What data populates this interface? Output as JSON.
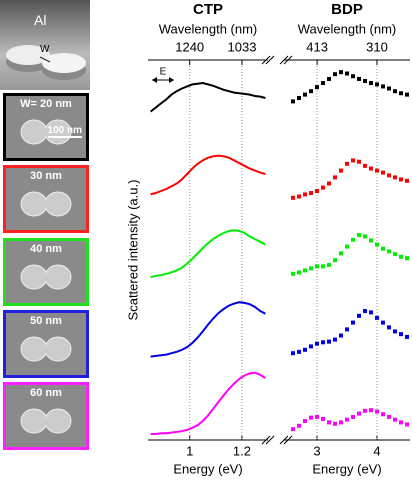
{
  "panel": {
    "render_label": "Al",
    "gap_label": "W",
    "scale_bar": "100 nm",
    "images": [
      {
        "label": "W= 20 nm",
        "color": "#000000"
      },
      {
        "label": "30 nm",
        "color": "#ff2020"
      },
      {
        "label": "40 nm",
        "color": "#20e020"
      },
      {
        "label": "50 nm",
        "color": "#2020e0"
      },
      {
        "label": "60 nm",
        "color": "#ff20ff"
      }
    ]
  },
  "chart_data": [
    {
      "type": "line",
      "title": "CTP",
      "x2label": "Wavelength (nm)",
      "xlabel": "Energy (eV)",
      "ylabel": "Scattered intensity (a.u.)",
      "annotation": "E",
      "xlim": [
        0.84,
        1.3
      ],
      "xticks": [
        1.0,
        1.2
      ],
      "x2ticks": [
        1240,
        1033
      ],
      "ylim": [
        0,
        1
      ],
      "grid": true,
      "x": [
        0.85,
        0.87,
        0.89,
        0.91,
        0.93,
        0.95,
        0.97,
        0.99,
        1.01,
        1.03,
        1.05,
        1.07,
        1.09,
        1.11,
        1.13,
        1.15,
        1.17,
        1.19,
        1.21,
        1.23,
        1.25,
        1.27,
        1.29
      ],
      "series": [
        {
          "color": "#000000",
          "values": [
            0.3,
            0.36,
            0.42,
            0.48,
            0.55,
            0.6,
            0.64,
            0.67,
            0.7,
            0.71,
            0.72,
            0.7,
            0.68,
            0.65,
            0.62,
            0.6,
            0.58,
            0.57,
            0.56,
            0.55,
            0.53,
            0.52,
            0.5
          ]
        },
        {
          "color": "#ff0000",
          "values": [
            0.2,
            0.22,
            0.25,
            0.28,
            0.32,
            0.36,
            0.42,
            0.5,
            0.58,
            0.65,
            0.7,
            0.74,
            0.76,
            0.77,
            0.76,
            0.74,
            0.7,
            0.66,
            0.62,
            0.58,
            0.55,
            0.52,
            0.5
          ]
        },
        {
          "color": "#00ee00",
          "values": [
            0.1,
            0.12,
            0.13,
            0.15,
            0.17,
            0.2,
            0.24,
            0.3,
            0.37,
            0.45,
            0.53,
            0.6,
            0.66,
            0.71,
            0.75,
            0.78,
            0.79,
            0.78,
            0.75,
            0.7,
            0.66,
            0.62,
            0.58
          ]
        },
        {
          "color": "#0000ee",
          "values": [
            0.05,
            0.06,
            0.07,
            0.08,
            0.1,
            0.12,
            0.15,
            0.19,
            0.25,
            0.33,
            0.42,
            0.52,
            0.61,
            0.69,
            0.75,
            0.8,
            0.83,
            0.85,
            0.84,
            0.82,
            0.78,
            0.72,
            0.68
          ]
        },
        {
          "color": "#ff00ff",
          "values": [
            0.03,
            0.03,
            0.04,
            0.04,
            0.05,
            0.06,
            0.07,
            0.09,
            0.12,
            0.16,
            0.22,
            0.3,
            0.4,
            0.5,
            0.6,
            0.69,
            0.77,
            0.84,
            0.89,
            0.92,
            0.93,
            0.9,
            0.85
          ]
        }
      ]
    },
    {
      "type": "scatter",
      "title": "BDP",
      "x2label": "Wavelength (nm)",
      "xlabel": "Energy (eV)",
      "xlim": [
        2.45,
        4.55
      ],
      "xticks": [
        3,
        4
      ],
      "x2ticks": [
        413,
        310
      ],
      "ylim": [
        0,
        1
      ],
      "grid": true,
      "x": [
        2.6,
        2.7,
        2.8,
        2.9,
        3.0,
        3.1,
        3.2,
        3.3,
        3.4,
        3.5,
        3.6,
        3.7,
        3.8,
        3.9,
        4.0,
        4.1,
        4.2,
        4.3,
        4.4,
        4.5
      ],
      "series": [
        {
          "color": "#000000",
          "values": [
            0.45,
            0.5,
            0.55,
            0.6,
            0.66,
            0.72,
            0.78,
            0.85,
            0.88,
            0.86,
            0.82,
            0.78,
            0.75,
            0.72,
            0.7,
            0.67,
            0.64,
            0.6,
            0.57,
            0.55
          ]
        },
        {
          "color": "#ff0000",
          "values": [
            0.15,
            0.17,
            0.2,
            0.22,
            0.25,
            0.3,
            0.36,
            0.45,
            0.55,
            0.65,
            0.7,
            0.68,
            0.62,
            0.58,
            0.55,
            0.52,
            0.48,
            0.45,
            0.42,
            0.4
          ]
        },
        {
          "color": "#00ee00",
          "values": [
            0.15,
            0.17,
            0.2,
            0.23,
            0.26,
            0.26,
            0.28,
            0.35,
            0.45,
            0.55,
            0.65,
            0.72,
            0.7,
            0.64,
            0.58,
            0.52,
            0.48,
            0.44,
            0.4,
            0.38
          ]
        },
        {
          "color": "#0000ee",
          "values": [
            0.1,
            0.12,
            0.15,
            0.2,
            0.24,
            0.26,
            0.27,
            0.3,
            0.36,
            0.45,
            0.55,
            0.65,
            0.72,
            0.7,
            0.62,
            0.55,
            0.48,
            0.42,
            0.38,
            0.34
          ]
        },
        {
          "color": "#ff00ff",
          "values": [
            0.1,
            0.15,
            0.22,
            0.27,
            0.28,
            0.25,
            0.2,
            0.18,
            0.2,
            0.24,
            0.28,
            0.33,
            0.37,
            0.38,
            0.36,
            0.32,
            0.28,
            0.24,
            0.2,
            0.17
          ]
        }
      ]
    }
  ]
}
